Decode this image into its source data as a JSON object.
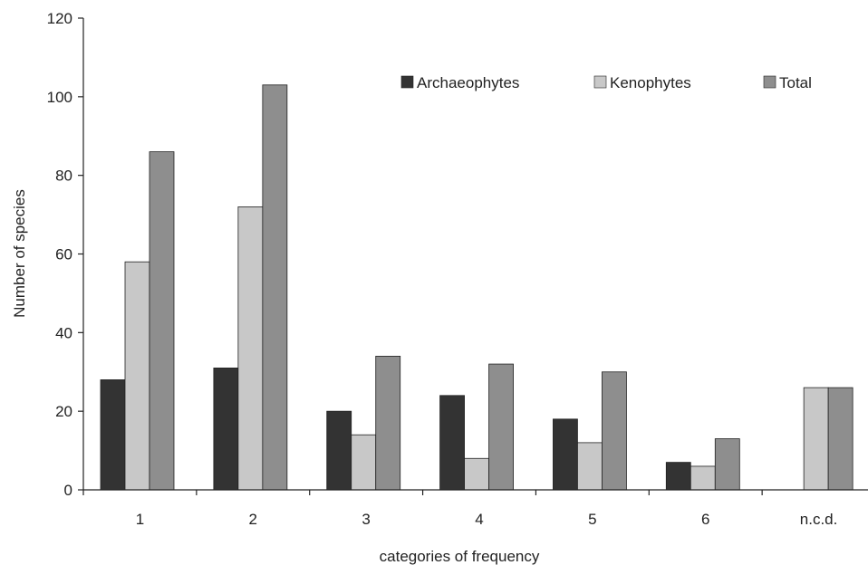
{
  "chart_data": {
    "type": "bar",
    "title": "",
    "xlabel": "categories of frequency",
    "ylabel": "Number of species",
    "categories": [
      "1",
      "2",
      "3",
      "4",
      "5",
      "6",
      "n.c.d."
    ],
    "series": [
      {
        "name": "Archaeophytes",
        "color": "#333333",
        "values": [
          28,
          31,
          20,
          24,
          18,
          7,
          0
        ]
      },
      {
        "name": "Kenophytes",
        "color": "#c8c8c8",
        "values": [
          58,
          72,
          14,
          8,
          12,
          6,
          26
        ]
      },
      {
        "name": "Total",
        "color": "#8e8e8e",
        "values": [
          86,
          103,
          34,
          32,
          30,
          13,
          26
        ]
      }
    ],
    "ylim": [
      0,
      120
    ],
    "yticks": [
      0,
      20,
      40,
      60,
      80,
      100,
      120
    ],
    "grid": false,
    "legend_position": "top-right"
  }
}
